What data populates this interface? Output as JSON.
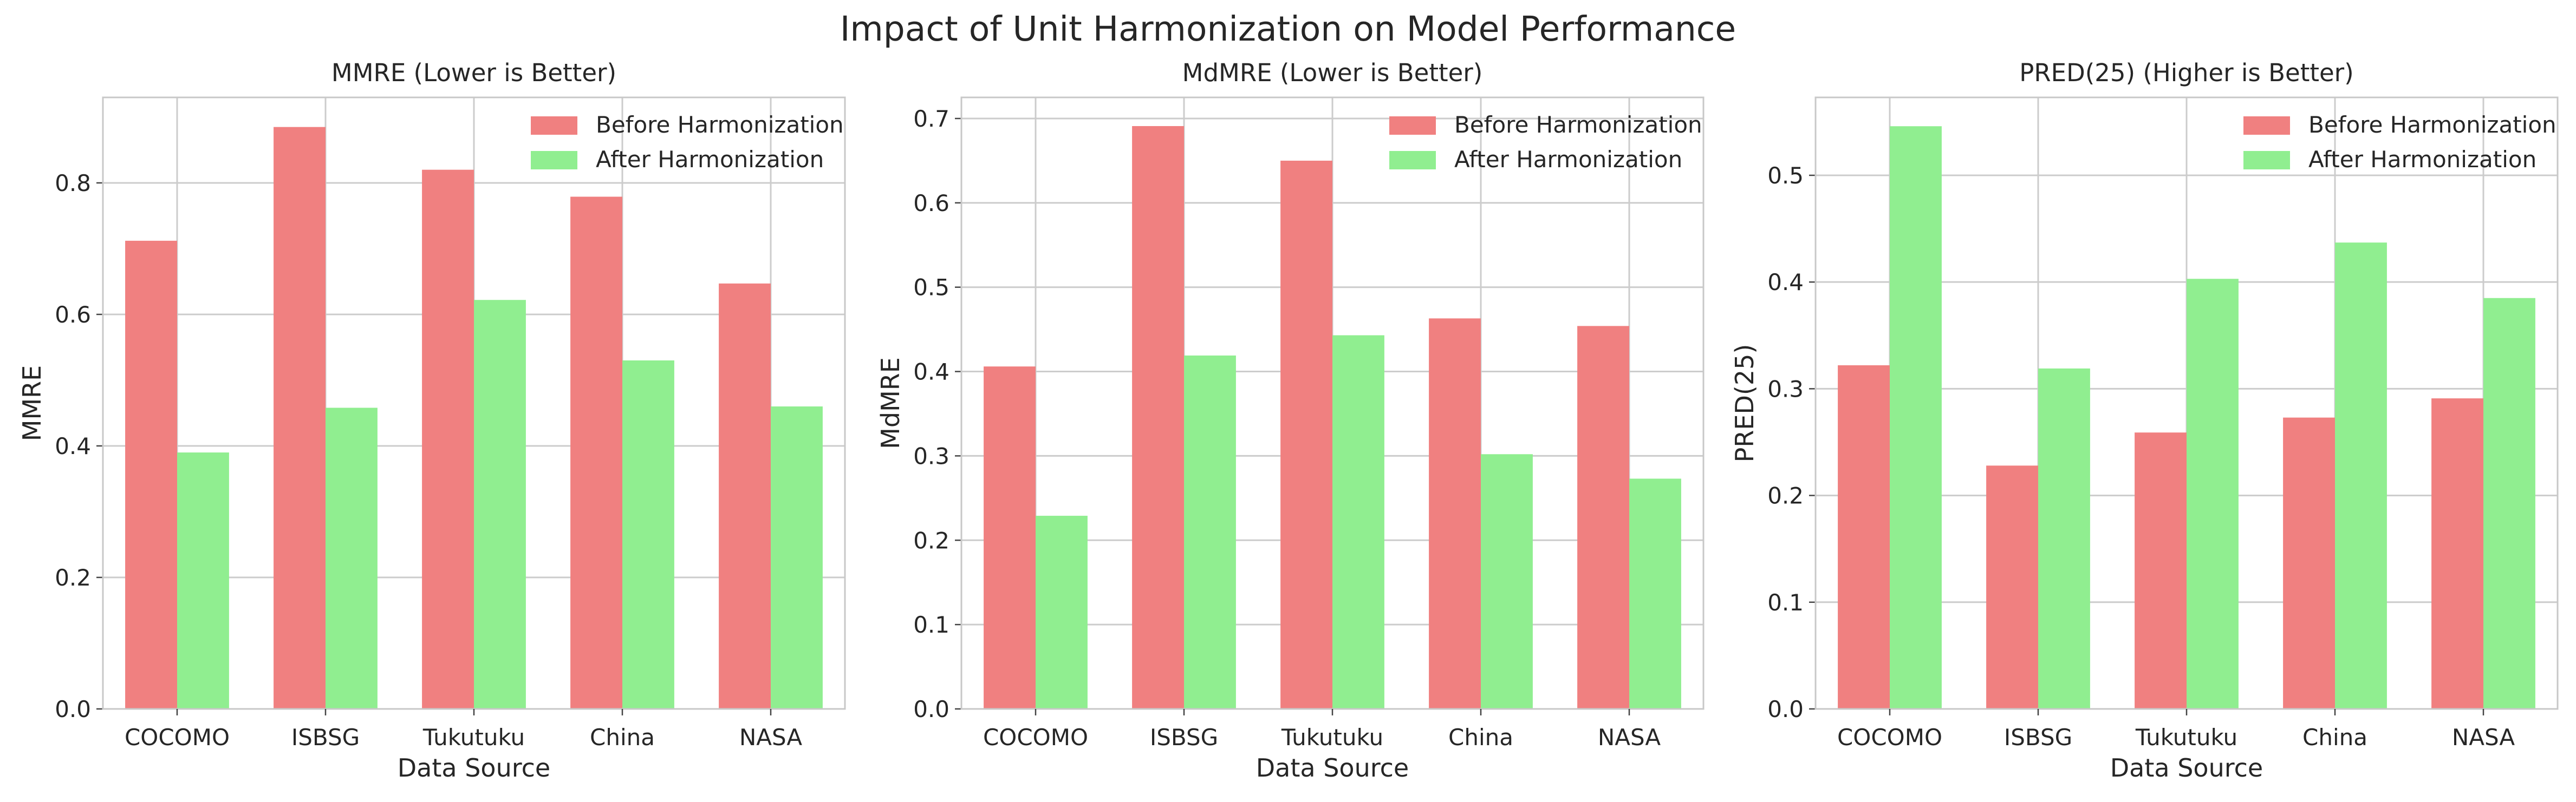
{
  "figure": {
    "title": "Impact of Unit Harmonization on Model Performance"
  },
  "colors": {
    "before": "#f08080",
    "after": "#90ee90"
  },
  "chart_data": [
    {
      "type": "bar",
      "title": "MMRE (Lower is Better)",
      "xlabel": "Data Source",
      "ylabel": "MMRE",
      "categories": [
        "COCOMO",
        "ISBSG",
        "Tukutuku",
        "China",
        "NASA"
      ],
      "ylim": [
        0,
        0.93
      ],
      "yticks": [
        "0.0",
        "0.2",
        "0.4",
        "0.6",
        "0.8"
      ],
      "grid": true,
      "legend_position": "top-right",
      "series": [
        {
          "name": "Before Harmonization",
          "values": [
            0.712,
            0.885,
            0.82,
            0.779,
            0.647
          ]
        },
        {
          "name": "After Harmonization",
          "values": [
            0.39,
            0.458,
            0.622,
            0.53,
            0.46
          ]
        }
      ]
    },
    {
      "type": "bar",
      "title": "MdMRE (Lower is Better)",
      "xlabel": "Data Source",
      "ylabel": "MdMRE",
      "categories": [
        "COCOMO",
        "ISBSG",
        "Tukutuku",
        "China",
        "NASA"
      ],
      "ylim": [
        0,
        0.725
      ],
      "yticks": [
        "0.0",
        "0.1",
        "0.2",
        "0.3",
        "0.4",
        "0.5",
        "0.6",
        "0.7"
      ],
      "grid": true,
      "legend_position": "top-right",
      "series": [
        {
          "name": "Before Harmonization",
          "values": [
            0.406,
            0.691,
            0.65,
            0.463,
            0.454
          ]
        },
        {
          "name": "After Harmonization",
          "values": [
            0.229,
            0.419,
            0.443,
            0.302,
            0.273
          ]
        }
      ]
    },
    {
      "type": "bar",
      "title": "PRED(25) (Higher is Better)",
      "xlabel": "Data Source",
      "ylabel": "PRED(25)",
      "categories": [
        "COCOMO",
        "ISBSG",
        "Tukutuku",
        "China",
        "NASA"
      ],
      "ylim": [
        0,
        0.573
      ],
      "yticks": [
        "0.0",
        "0.1",
        "0.2",
        "0.3",
        "0.4",
        "0.5"
      ],
      "grid": true,
      "legend_position": "top-right",
      "series": [
        {
          "name": "Before Harmonization",
          "values": [
            0.322,
            0.228,
            0.259,
            0.273,
            0.291
          ]
        },
        {
          "name": "After Harmonization",
          "values": [
            0.546,
            0.319,
            0.403,
            0.437,
            0.385
          ]
        }
      ]
    }
  ]
}
